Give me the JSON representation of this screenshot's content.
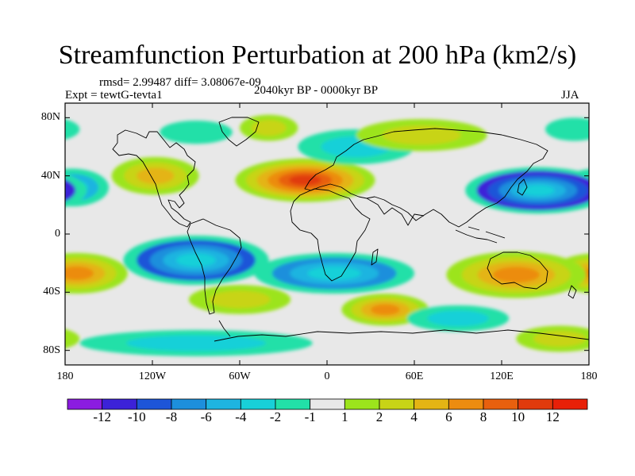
{
  "title": "Streamfunction Perturbation at 200 hPa (km2/s)",
  "rmsd_text": "rmsd= 2.99487 diff= 3.08067e-09",
  "expt_text": "Expt = tewtG-tevta1",
  "period_text": "2040kyr BP - 0000kyr BP",
  "season_text": "JJA",
  "y_axis": {
    "ticks": [
      {
        "label": "80N",
        "lat": 80
      },
      {
        "label": "40N",
        "lat": 40
      },
      {
        "label": "0",
        "lat": 0
      },
      {
        "label": "40S",
        "lat": -40
      },
      {
        "label": "80S",
        "lat": -80
      }
    ]
  },
  "x_axis": {
    "ticks": [
      {
        "label": "180",
        "lon": -180
      },
      {
        "label": "120W",
        "lon": -120
      },
      {
        "label": "60W",
        "lon": -60
      },
      {
        "label": "0",
        "lon": 0
      },
      {
        "label": "60E",
        "lon": 60
      },
      {
        "label": "120E",
        "lon": 120
      },
      {
        "label": "180",
        "lon": 180
      }
    ]
  },
  "colorbar": {
    "labels": [
      "-12",
      "-10",
      "-8",
      "-6",
      "-4",
      "-2",
      "-1",
      "1",
      "2",
      "4",
      "6",
      "8",
      "10",
      "12"
    ],
    "colors": [
      "#8b1ce0",
      "#3c22d8",
      "#1d55d8",
      "#1d8fdc",
      "#1eb4e0",
      "#18d0d8",
      "#22e0a8",
      "#e8e8e8",
      "#9ce41c",
      "#c8d416",
      "#e4b414",
      "#ec8c10",
      "#e8600e",
      "#e03a0c",
      "#e82008"
    ]
  },
  "chart_data": {
    "type": "heatmap",
    "projection": "cylindrical-equidistant",
    "xlim": [
      -180,
      180
    ],
    "ylim": [
      -90,
      90
    ],
    "units": "km2/s",
    "levels": [
      -12,
      -10,
      -8,
      -6,
      -4,
      -2,
      -1,
      1,
      2,
      4,
      6,
      8,
      10,
      12
    ],
    "anomalies": [
      {
        "lon": -175,
        "lat": 32,
        "value": -5,
        "rx": 25,
        "ry": 13
      },
      {
        "lon": -118,
        "lat": 40,
        "value": 5,
        "rx": 30,
        "ry": 13
      },
      {
        "lon": -90,
        "lat": 70,
        "value": -1.5,
        "rx": 25,
        "ry": 8
      },
      {
        "lon": -40,
        "lat": 73,
        "value": 2,
        "rx": 20,
        "ry": 9
      },
      {
        "lon": -15,
        "lat": 37,
        "value": 10,
        "rx": 48,
        "ry": 15
      },
      {
        "lon": 20,
        "lat": 60,
        "value": -2,
        "rx": 40,
        "ry": 12
      },
      {
        "lon": 65,
        "lat": 68,
        "value": 2,
        "rx": 45,
        "ry": 11
      },
      {
        "lon": 145,
        "lat": 30,
        "value": -10,
        "rx": 50,
        "ry": 16
      },
      {
        "lon": 170,
        "lat": 72,
        "value": -1.5,
        "rx": 20,
        "ry": 8
      },
      {
        "lon": -172,
        "lat": -27,
        "value": 7,
        "rx": 35,
        "ry": 14
      },
      {
        "lon": -90,
        "lat": -18,
        "value": -8,
        "rx": 50,
        "ry": 17
      },
      {
        "lon": -60,
        "lat": -45,
        "value": 2,
        "rx": 35,
        "ry": 10
      },
      {
        "lon": 5,
        "lat": -27,
        "value": -7,
        "rx": 55,
        "ry": 14
      },
      {
        "lon": 40,
        "lat": -52,
        "value": 6,
        "rx": 30,
        "ry": 11
      },
      {
        "lon": 130,
        "lat": -28,
        "value": 7,
        "rx": 48,
        "ry": 16
      },
      {
        "lon": 90,
        "lat": -58,
        "value": -2,
        "rx": 35,
        "ry": 9
      },
      {
        "lon": 160,
        "lat": -72,
        "value": 3,
        "rx": 30,
        "ry": 9
      },
      {
        "lon": -90,
        "lat": -75,
        "value": -2,
        "rx": 80,
        "ry": 9
      }
    ]
  }
}
